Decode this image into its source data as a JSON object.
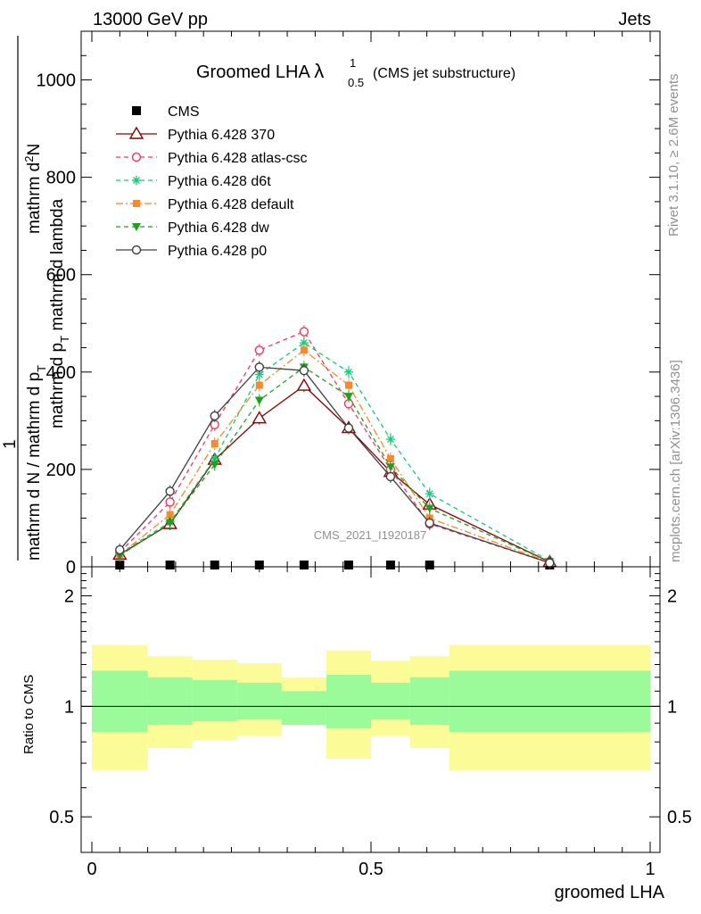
{
  "header": {
    "left": "13000 GeV pp",
    "right": "Jets"
  },
  "title": {
    "main": "Groomed LHA",
    "lambda": "λ",
    "sup": "1",
    "sub": "0.5",
    "suffix": "(CMS jet substructure)"
  },
  "side_text": {
    "rivet": "Rivet 3.1.10, ≥ 2.6M events",
    "mcplots": "mcplots.cern.ch [arXiv:1306.3436]"
  },
  "watermark": "CMS_2021_I1920187",
  "y_label": {
    "top_num": "1",
    "denominator": "mathrm d N / mathrm d p",
    "denominator_sub": "T",
    "numerator": "mathrm d",
    "numerator_sup": "2",
    "numerator_tail": "N",
    "numerator_line2": "mathrm d p",
    "numerator_line2_sub": "T",
    "numerator_line2_tail": " mathrm d lambda"
  },
  "ratio_label": "Ratio to CMS",
  "x_label": "groomed LHA",
  "colors": {
    "CMS": "#000000",
    "p370": "#8b0000",
    "atlas_csc": "#ee3b5e",
    "d6t": "#13cc7a",
    "default": "#f58a2e",
    "dw": "#1ea01e",
    "p0": "#404040",
    "band_inner": "#9bfb9b",
    "band_outer": "#fbfb97"
  },
  "chart_data": {
    "type": "line",
    "title": "Groomed LHA λ^1_0.5 (CMS jet substructure)",
    "xlabel": "groomed LHA",
    "ylabel": "1 / (mathrm d N / mathrm d p_T) · mathrm d^2N / (mathrm d p_T mathrm d lambda)",
    "xlim": [
      0,
      1
    ],
    "ylim": [
      0,
      1100
    ],
    "x_ticks": [
      0,
      0.5,
      1
    ],
    "y_ticks": [
      0,
      200,
      400,
      600,
      800,
      1000
    ],
    "ratio_ylim": [
      0.4,
      2.4
    ],
    "ratio_ticks": [
      0.5,
      1,
      2
    ],
    "bin_edges": [
      0,
      0.1,
      0.18,
      0.26,
      0.34,
      0.42,
      0.5,
      0.57,
      0.64,
      1.0
    ],
    "x": [
      0.05,
      0.14,
      0.22,
      0.3,
      0.38,
      0.46,
      0.535,
      0.605,
      0.82
    ],
    "series": [
      {
        "name": "CMS",
        "key": "CMS",
        "marker": "square",
        "line": "none",
        "values": [
          0,
          0,
          0,
          0,
          0,
          0,
          0,
          0,
          0
        ]
      },
      {
        "name": "Pythia 6.428 370",
        "key": "p370",
        "marker": "triangle-open",
        "line": "solid",
        "values": [
          25,
          88,
          220,
          305,
          372,
          285,
          195,
          128,
          10
        ]
      },
      {
        "name": "Pythia 6.428 atlas-csc",
        "key": "atlas_csc",
        "marker": "circle-open",
        "line": "dashed",
        "values": [
          30,
          133,
          292,
          445,
          483,
          335,
          200,
          88,
          8
        ]
      },
      {
        "name": "Pythia 6.428 d6t",
        "key": "d6t",
        "marker": "star",
        "line": "dashed",
        "values": [
          27,
          92,
          222,
          395,
          460,
          400,
          262,
          150,
          12
        ]
      },
      {
        "name": "Pythia 6.428 default",
        "key": "default",
        "marker": "square-filled",
        "line": "dashdot",
        "values": [
          25,
          107,
          253,
          373,
          445,
          373,
          222,
          100,
          9
        ]
      },
      {
        "name": "Pythia 6.428 dw",
        "key": "dw",
        "marker": "triangle-down-filled",
        "line": "dashed",
        "values": [
          23,
          90,
          210,
          342,
          410,
          350,
          205,
          120,
          10
        ]
      },
      {
        "name": "Pythia 6.428 p0",
        "key": "p0",
        "marker": "circle-open",
        "line": "solid",
        "values": [
          35,
          155,
          310,
          410,
          403,
          285,
          185,
          90,
          8
        ]
      }
    ],
    "ratio_band_inner": [
      {
        "lo": 0.85,
        "hi": 1.25
      },
      {
        "lo": 0.89,
        "hi": 1.2
      },
      {
        "lo": 0.91,
        "hi": 1.18
      },
      {
        "lo": 0.92,
        "hi": 1.16
      },
      {
        "lo": 0.89,
        "hi": 1.1
      },
      {
        "lo": 0.87,
        "hi": 1.22
      },
      {
        "lo": 0.92,
        "hi": 1.16
      },
      {
        "lo": 0.89,
        "hi": 1.2
      },
      {
        "lo": 0.85,
        "hi": 1.25
      }
    ],
    "ratio_band_outer": [
      {
        "lo": 0.67,
        "hi": 1.47
      },
      {
        "lo": 0.77,
        "hi": 1.37
      },
      {
        "lo": 0.81,
        "hi": 1.34
      },
      {
        "lo": 0.83,
        "hi": 1.31
      },
      {
        "lo": 0.89,
        "hi": 1.2
      },
      {
        "lo": 0.72,
        "hi": 1.42
      },
      {
        "lo": 0.83,
        "hi": 1.33
      },
      {
        "lo": 0.77,
        "hi": 1.37
      },
      {
        "lo": 0.67,
        "hi": 1.47
      }
    ]
  }
}
